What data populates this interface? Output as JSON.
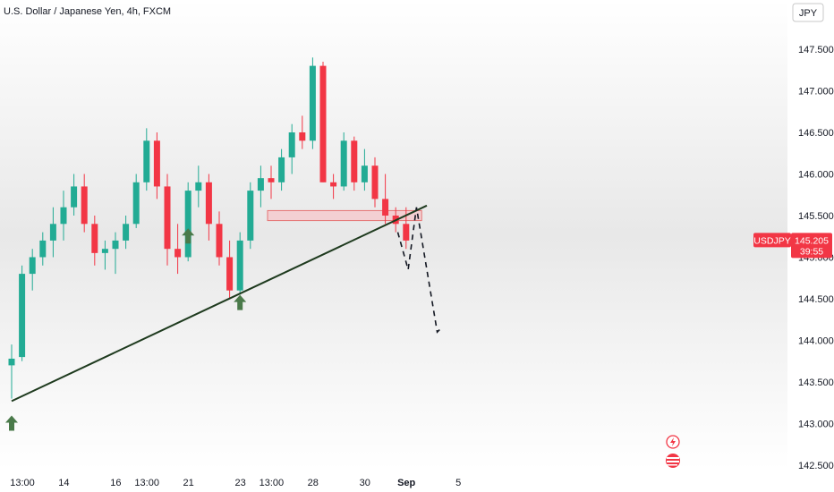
{
  "chart_data": {
    "type": "candlestick",
    "title": "U.S. Dollar / Japanese Yen, 4h, FXCM",
    "currency_unit": "JPY",
    "symbol": "USDJPY",
    "last_price": "145.205",
    "countdown": "39:55",
    "ylim": [
      142.4,
      147.9
    ],
    "y_ticks": [
      "142.500",
      "143.000",
      "143.500",
      "144.000",
      "144.500",
      "145.000",
      "145.500",
      "146.000",
      "146.500",
      "147.000",
      "147.500"
    ],
    "x_ticks": [
      {
        "label": "13:00",
        "i": 0
      },
      {
        "label": "14",
        "i": 4
      },
      {
        "label": "16",
        "i": 9
      },
      {
        "label": "13:00",
        "i": 12
      },
      {
        "label": "21",
        "i": 16
      },
      {
        "label": "23",
        "i": 21
      },
      {
        "label": "13:00",
        "i": 24
      },
      {
        "label": "28",
        "i": 28
      },
      {
        "label": "30",
        "i": 33
      },
      {
        "label": "Sep",
        "i": 37,
        "bold": true
      },
      {
        "label": "5",
        "i": 42
      }
    ],
    "candles": [
      [
        143.7,
        143.95,
        143.3,
        143.78
      ],
      [
        143.8,
        144.9,
        143.75,
        144.8
      ],
      [
        144.8,
        145.1,
        144.6,
        145.0
      ],
      [
        145.0,
        145.3,
        144.9,
        145.2
      ],
      [
        145.2,
        145.6,
        145.0,
        145.4
      ],
      [
        145.4,
        145.8,
        145.2,
        145.6
      ],
      [
        145.6,
        146.0,
        145.5,
        145.85
      ],
      [
        145.85,
        146.0,
        145.3,
        145.4
      ],
      [
        145.4,
        145.5,
        144.9,
        145.05
      ],
      [
        145.05,
        145.2,
        144.85,
        145.1
      ],
      [
        145.1,
        145.3,
        144.8,
        145.2
      ],
      [
        145.2,
        145.5,
        145.1,
        145.4
      ],
      [
        145.4,
        146.0,
        145.35,
        145.9
      ],
      [
        145.9,
        146.55,
        145.8,
        146.4
      ],
      [
        146.4,
        146.5,
        145.7,
        145.85
      ],
      [
        145.85,
        146.0,
        144.9,
        145.1
      ],
      [
        145.1,
        145.4,
        144.8,
        145.0
      ],
      [
        145.0,
        145.9,
        144.95,
        145.8
      ],
      [
        145.8,
        146.1,
        145.6,
        145.9
      ],
      [
        145.9,
        146.0,
        145.2,
        145.4
      ],
      [
        145.4,
        145.55,
        144.9,
        145.0
      ],
      [
        145.0,
        145.2,
        144.5,
        144.6
      ],
      [
        144.6,
        145.3,
        144.55,
        145.2
      ],
      [
        145.2,
        145.9,
        145.1,
        145.8
      ],
      [
        145.8,
        146.1,
        145.6,
        145.95
      ],
      [
        145.95,
        146.1,
        145.7,
        145.9
      ],
      [
        145.9,
        146.3,
        145.8,
        146.2
      ],
      [
        146.2,
        146.6,
        146.0,
        146.5
      ],
      [
        146.5,
        146.7,
        146.3,
        146.4
      ],
      [
        146.4,
        147.4,
        146.3,
        147.3
      ],
      [
        147.3,
        147.35,
        145.9,
        145.9
      ],
      [
        145.9,
        146.0,
        145.7,
        145.85
      ],
      [
        145.85,
        146.5,
        145.8,
        146.4
      ],
      [
        146.4,
        146.45,
        145.8,
        145.9
      ],
      [
        145.9,
        146.3,
        145.8,
        146.1
      ],
      [
        146.1,
        146.2,
        145.6,
        145.7
      ],
      [
        145.7,
        146.0,
        145.4,
        145.5
      ],
      [
        145.5,
        145.6,
        145.3,
        145.4
      ],
      [
        145.4,
        145.6,
        145.1,
        145.2
      ]
    ],
    "resistance_zone": {
      "from_i": 25,
      "to_i": 39.5,
      "low": 145.44,
      "high": 145.56
    },
    "trendline": {
      "i1": 0,
      "p1": 143.27,
      "i2": 40,
      "p2": 145.62
    },
    "support_arrows": [
      {
        "i": 0,
        "p": 143.0
      },
      {
        "i": 17,
        "p": 145.25
      },
      {
        "i": 22,
        "p": 144.45
      }
    ],
    "projection": [
      {
        "i": 37.2,
        "p": 145.3
      },
      {
        "i": 38.2,
        "p": 144.85
      },
      {
        "i": 39,
        "p": 145.6
      },
      {
        "i": 41,
        "p": 144.1
      },
      {
        "i": 41.4,
        "p": 144.15
      }
    ],
    "colors": {
      "up": "#22ab94",
      "down": "#f23645",
      "zone_fill": "#f5c6ca",
      "zone_stroke": "#e57373",
      "trend": "#1e3a1e",
      "arrow": "#4a7a4a",
      "tag": "#f23645"
    },
    "event_icons": [
      "lightning-icon",
      "us-flag-icon"
    ]
  }
}
